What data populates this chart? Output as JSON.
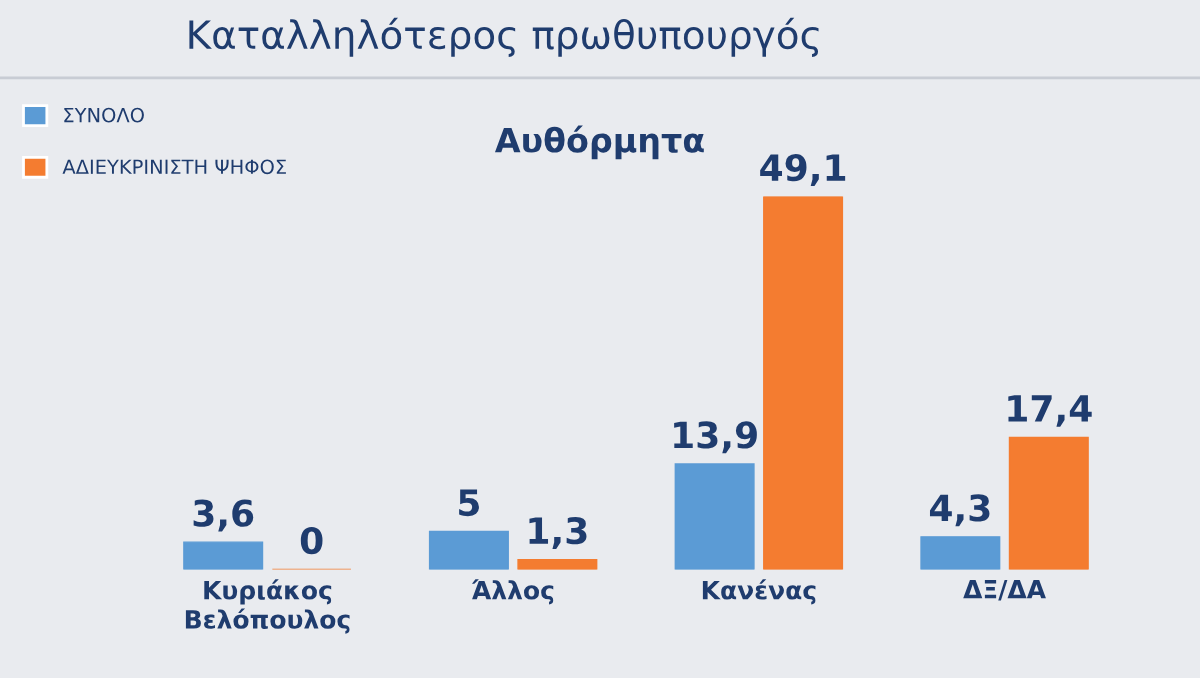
{
  "chart_data": {
    "type": "bar",
    "title": "Καταλληλότερος πρωθυπουργός",
    "subtitle": "Αυθόρμητα",
    "categories": [
      "Κυριάκος\nΒελόπουλος",
      "Άλλος",
      "Κανένας",
      "ΔΞ/ΔΑ"
    ],
    "series": [
      {
        "name": "ΣΥΝΟΛΟ",
        "color": "#5b9bd5",
        "values": [
          3.6,
          5,
          13.9,
          4.3
        ],
        "value_labels": [
          "3,6",
          "5",
          "13,9",
          "4,3"
        ]
      },
      {
        "name": "ΑΔΙΕΥΚΡΙΝΙΣΤΗ ΨΗΦΟΣ",
        "color": "#f47c30",
        "values": [
          0,
          1.3,
          49.1,
          17.4
        ],
        "value_labels": [
          "0",
          "1,3",
          "49,1",
          "17,4"
        ]
      }
    ],
    "legend": "top left",
    "grid": false
  }
}
